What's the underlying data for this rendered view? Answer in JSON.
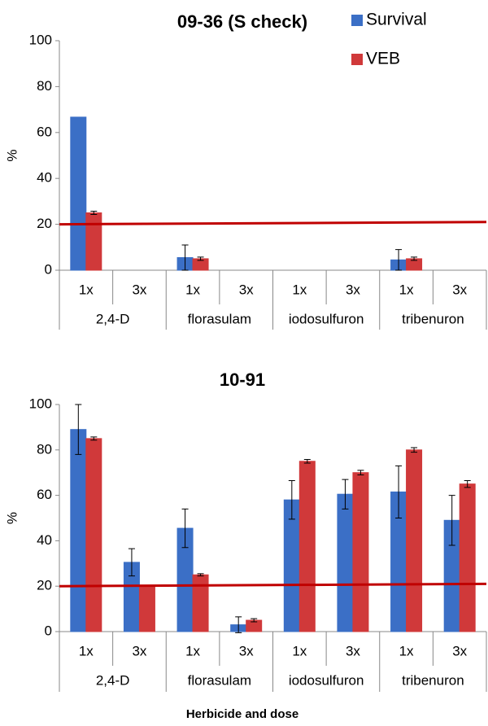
{
  "chart_data": [
    {
      "type": "bar",
      "title": "09-36 (S check)",
      "y_label": "%",
      "categories": [
        "1x",
        "3x",
        "1x",
        "3x",
        "1x",
        "3x",
        "1x",
        "3x"
      ],
      "groups": [
        "2,4-D",
        "florasulam",
        "iodosulfuron",
        "tribenuron"
      ],
      "series": [
        {
          "name": "Survival",
          "color": "#3b6fc6",
          "values": [
            66.7,
            0,
            5.5,
            0,
            0,
            0,
            4.5,
            0
          ],
          "errors": [
            null,
            null,
            5.5,
            null,
            null,
            null,
            4.5,
            null
          ]
        },
        {
          "name": "VEB",
          "color": "#d0393a",
          "values": [
            25,
            0,
            5,
            0,
            0,
            0,
            5,
            0
          ],
          "errors": [
            0.7,
            null,
            0.7,
            null,
            null,
            null,
            0.7,
            null
          ]
        }
      ],
      "ylim": [
        0,
        100
      ],
      "yticks": [
        0,
        20,
        40,
        60,
        80,
        100
      ],
      "ref_line": [
        20,
        21
      ],
      "ref_color": "#c00000",
      "legend": "top-right",
      "grid": false
    },
    {
      "type": "bar",
      "title": "10-91",
      "y_label": "%",
      "x_label": "Herbicide and dose",
      "categories": [
        "1x",
        "3x",
        "1x",
        "3x",
        "1x",
        "3x",
        "1x",
        "3x"
      ],
      "groups": [
        "2,4-D",
        "florasulam",
        "iodosulfuron",
        "tribenuron"
      ],
      "series": [
        {
          "color": "#3b6fc6",
          "values": [
            89,
            30.5,
            45.5,
            3,
            58,
            60.5,
            61.5,
            49
          ],
          "errors": [
            11,
            6,
            8.5,
            3.5,
            8.5,
            6.5,
            11.5,
            11
          ]
        },
        {
          "color": "#d0393a",
          "values": [
            85,
            20,
            25,
            5,
            75,
            70,
            80,
            65
          ],
          "errors": [
            0.7,
            null,
            0.5,
            0.7,
            0.8,
            1,
            1,
            1.5
          ]
        }
      ],
      "ylim": [
        0,
        100
      ],
      "yticks": [
        0,
        20,
        40,
        60,
        80,
        100
      ],
      "ref_line": [
        20,
        21
      ],
      "ref_color": "#c00000",
      "grid": false
    }
  ]
}
